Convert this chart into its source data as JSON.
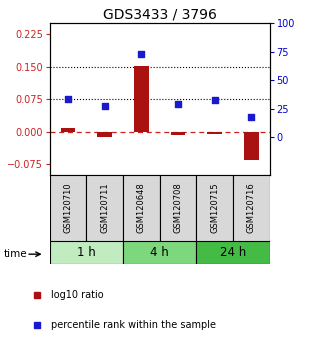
{
  "title": "GDS3433 / 3796",
  "samples": [
    "GSM120710",
    "GSM120711",
    "GSM120648",
    "GSM120708",
    "GSM120715",
    "GSM120716"
  ],
  "log10_ratio": [
    0.008,
    -0.012,
    0.151,
    -0.008,
    -0.005,
    -0.065
  ],
  "percentile_rank": [
    0.076,
    0.06,
    0.178,
    0.063,
    0.073,
    0.033
  ],
  "time_groups": [
    {
      "label": "1 h",
      "start": 0,
      "end": 2,
      "color": "#c0ecc0"
    },
    {
      "label": "4 h",
      "start": 2,
      "end": 4,
      "color": "#7dd87d"
    },
    {
      "label": "24 h",
      "start": 4,
      "end": 6,
      "color": "#44bb44"
    }
  ],
  "ylim_left": [
    -0.1,
    0.25
  ],
  "ylim_right": [
    -33.33,
    83.33
  ],
  "left_ticks": [
    -0.075,
    0,
    0.075,
    0.15,
    0.225
  ],
  "right_ticks": [
    0,
    25,
    50,
    75,
    100
  ],
  "hlines": [
    0.075,
    0.15
  ],
  "bar_color": "#aa1111",
  "dot_color": "#1a1acc",
  "dashed_line_color": "#cc2222",
  "left_tick_color": "#cc2222",
  "right_tick_color": "#0000cc",
  "sample_bg_color": "#d8d8d8",
  "title_fontsize": 10,
  "tick_fontsize": 7,
  "sample_fontsize": 6,
  "time_fontsize": 8.5,
  "legend_fontsize": 7
}
